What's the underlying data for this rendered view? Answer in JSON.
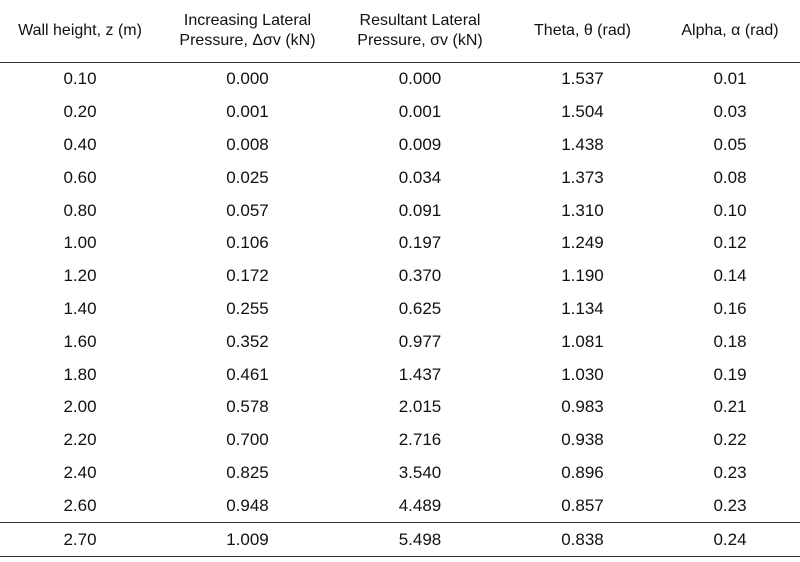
{
  "table": {
    "headers": [
      [
        "Wall height, z (m)"
      ],
      [
        "Increasing Lateral",
        "Pressure, Δσv (kN)"
      ],
      [
        "Resultant Lateral",
        "Pressure, σv (kN)"
      ],
      [
        "Theta, θ (rad)"
      ],
      [
        "Alpha, α (rad)"
      ]
    ],
    "rows": [
      [
        "0.10",
        "0.000",
        "0.000",
        "1.537",
        "0.01"
      ],
      [
        "0.20",
        "0.001",
        "0.001",
        "1.504",
        "0.03"
      ],
      [
        "0.40",
        "0.008",
        "0.009",
        "1.438",
        "0.05"
      ],
      [
        "0.60",
        "0.025",
        "0.034",
        "1.373",
        "0.08"
      ],
      [
        "0.80",
        "0.057",
        "0.091",
        "1.310",
        "0.10"
      ],
      [
        "1.00",
        "0.106",
        "0.197",
        "1.249",
        "0.12"
      ],
      [
        "1.20",
        "0.172",
        "0.370",
        "1.190",
        "0.14"
      ],
      [
        "1.40",
        "0.255",
        "0.625",
        "1.134",
        "0.16"
      ],
      [
        "1.60",
        "0.352",
        "0.977",
        "1.081",
        "0.18"
      ],
      [
        "1.80",
        "0.461",
        "1.437",
        "1.030",
        "0.19"
      ],
      [
        "2.00",
        "0.578",
        "2.015",
        "0.983",
        "0.21"
      ],
      [
        "2.20",
        "0.700",
        "2.716",
        "0.938",
        "0.22"
      ],
      [
        "2.40",
        "0.825",
        "3.540",
        "0.896",
        "0.23"
      ],
      [
        "2.60",
        "0.948",
        "4.489",
        "0.857",
        "0.23"
      ],
      [
        "2.70",
        "1.009",
        "5.498",
        "0.838",
        "0.24"
      ]
    ]
  }
}
